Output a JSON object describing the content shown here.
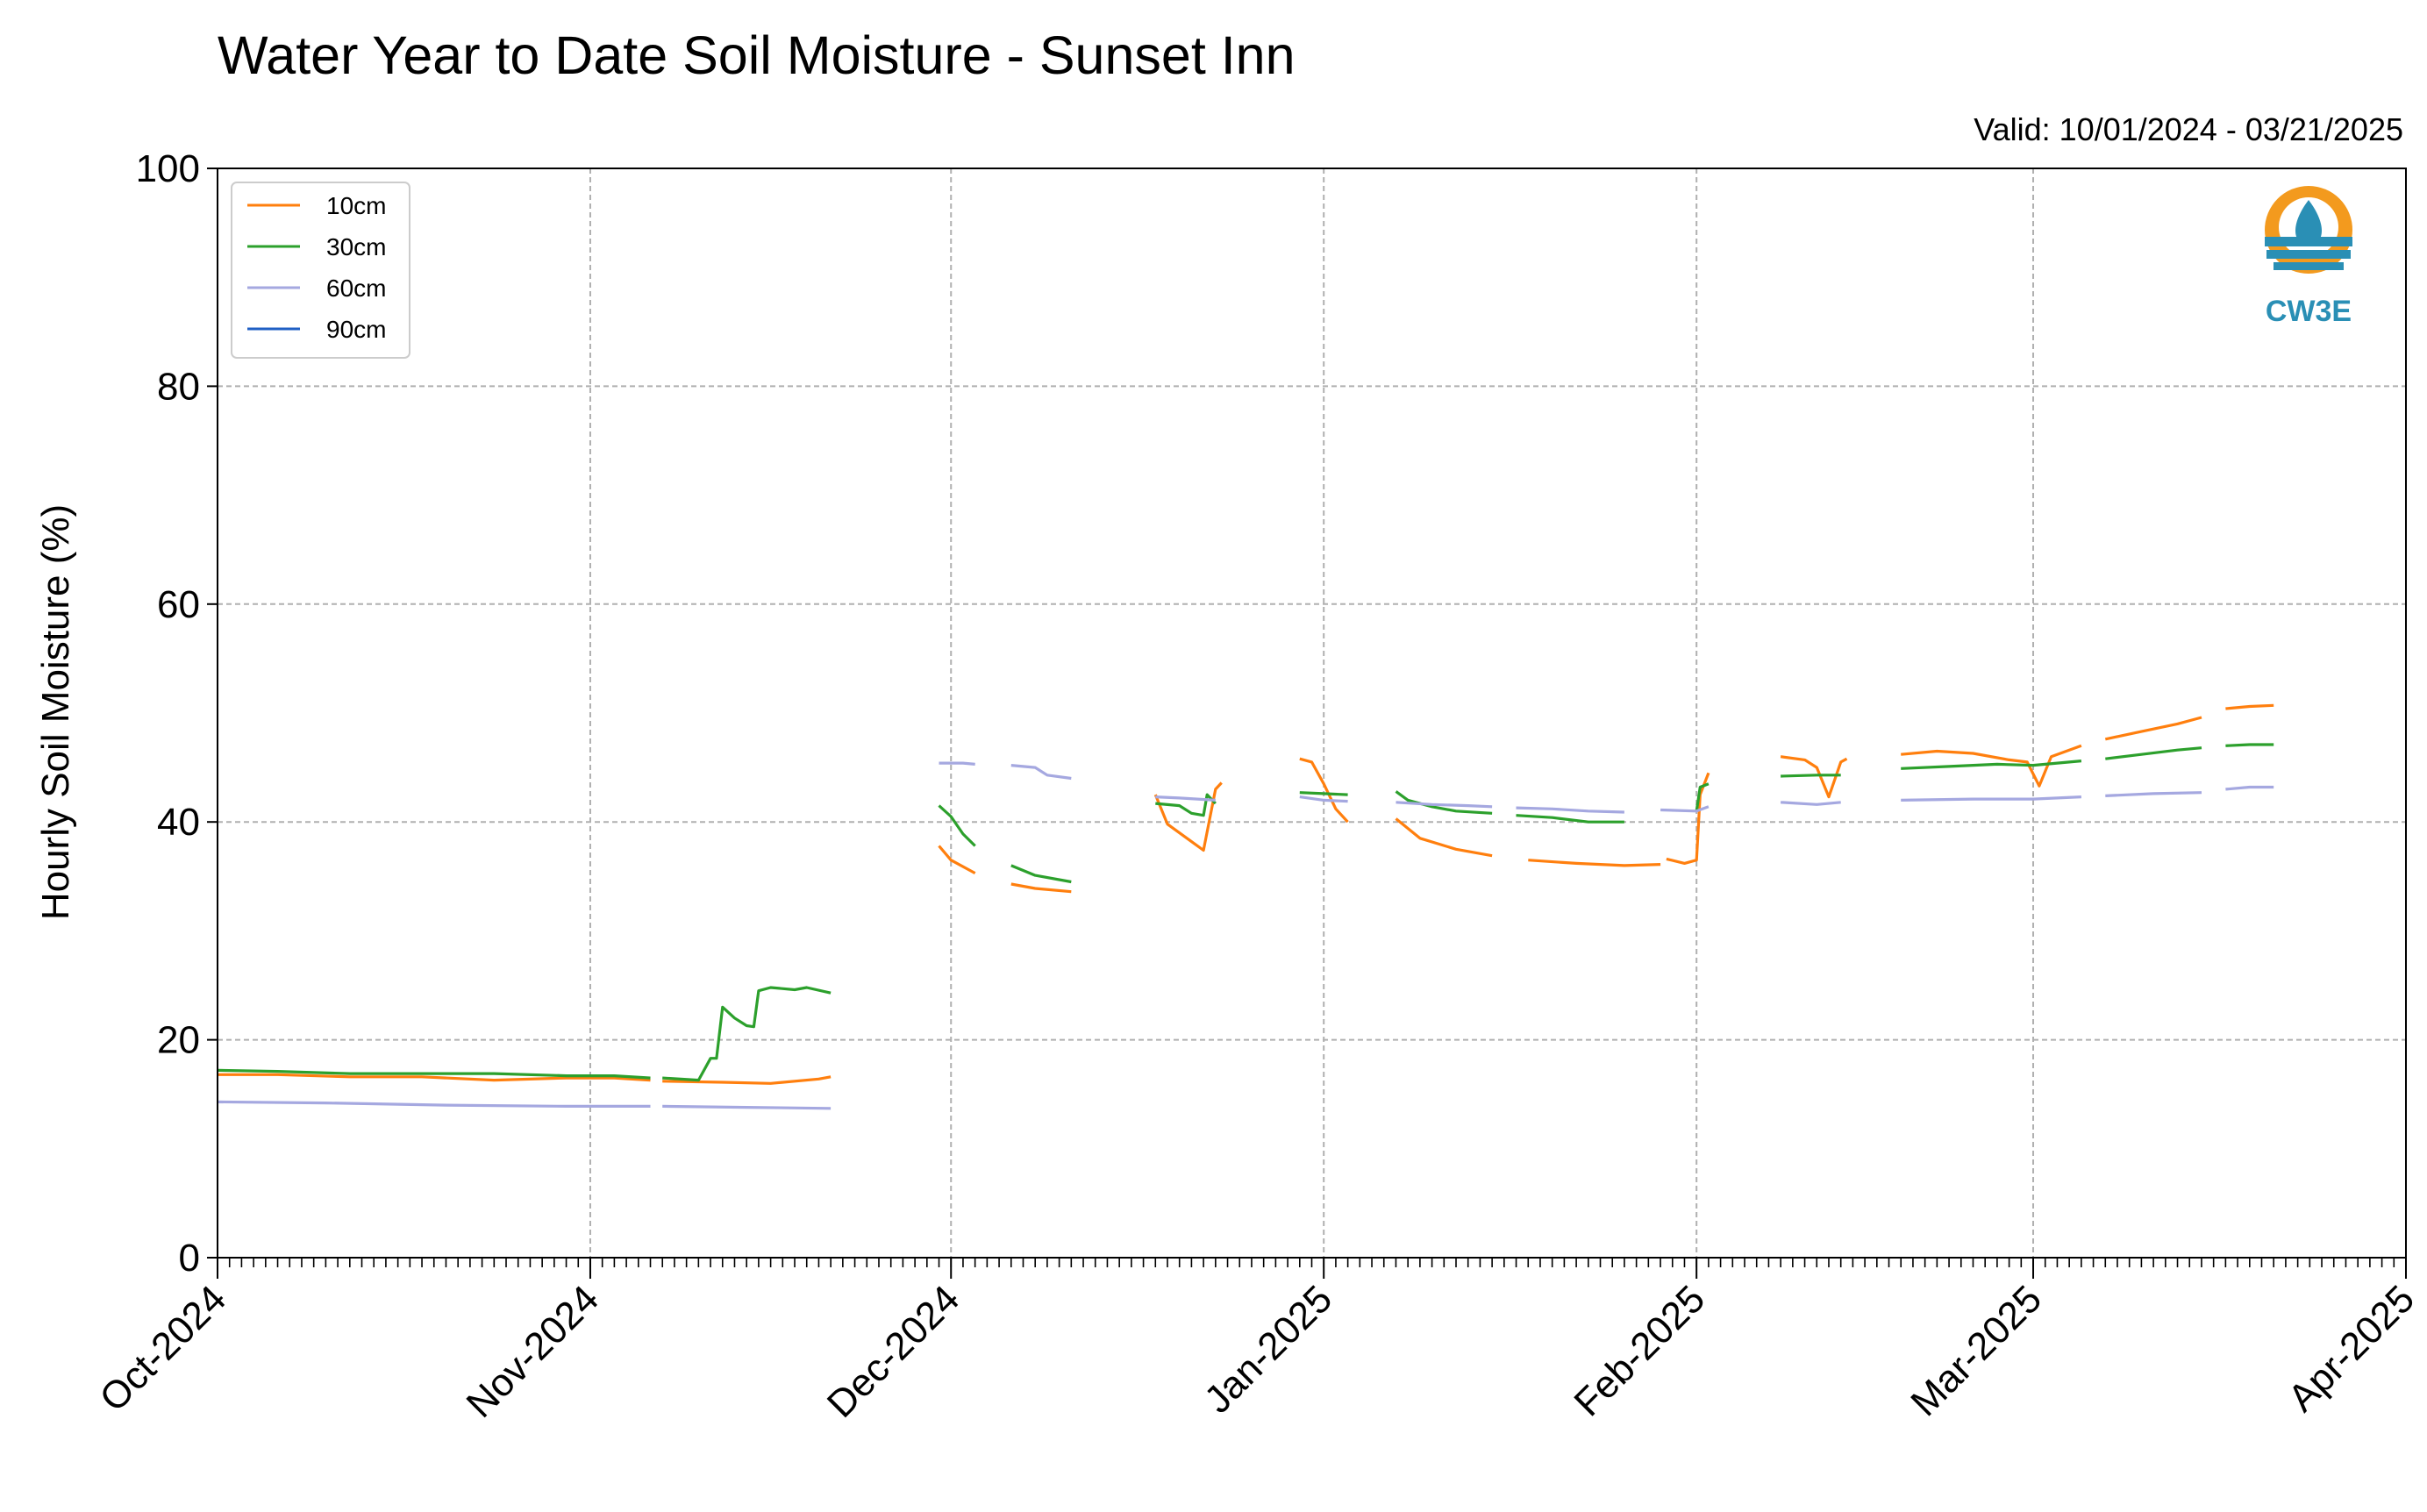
{
  "chart_data": {
    "type": "line",
    "title": "Water Year to Date Soil Moisture - Sunset Inn",
    "subtitle": "Valid: 10/01/2024 - 03/21/2025",
    "xlabel": "",
    "ylabel": "Hourly Soil Moisture (%)",
    "xlim": [
      "2024-10-01",
      "2025-04-01"
    ],
    "ylim": [
      0,
      100
    ],
    "x_ticks": [
      "2024-10-01",
      "2024-11-01",
      "2024-12-01",
      "2025-01-01",
      "2025-02-01",
      "2025-03-01",
      "2025-04-01"
    ],
    "x_tick_labels": [
      "Oct-2024",
      "Nov-2024",
      "Dec-2024",
      "Jan-2025",
      "Feb-2025",
      "Mar-2025",
      "Apr-2025"
    ],
    "y_ticks": [
      0,
      20,
      40,
      60,
      80,
      100
    ],
    "y_tick_labels": [
      "0",
      "20",
      "40",
      "60",
      "80",
      "100"
    ],
    "grid": true,
    "legend_position": "top-left",
    "logo": {
      "text": "CW3E",
      "color": "#2a8fb5",
      "accent": "#f39a1e",
      "position": "top-right"
    },
    "series": [
      {
        "name": "10cm",
        "color": "#ff7f0e",
        "segments": [
          [
            [
              "2024-10-01",
              16.8
            ],
            [
              "2024-10-06",
              16.8
            ],
            [
              "2024-10-12",
              16.6
            ],
            [
              "2024-10-18",
              16.6
            ],
            [
              "2024-10-24",
              16.3
            ],
            [
              "2024-10-30",
              16.5
            ],
            [
              "2024-11-03",
              16.5
            ],
            [
              "2024-11-06",
              16.3
            ]
          ],
          [
            [
              "2024-11-07",
              16.2
            ],
            [
              "2024-11-12",
              16.1
            ],
            [
              "2024-11-16",
              16.0
            ],
            [
              "2024-11-20",
              16.4
            ],
            [
              "2024-11-21",
              16.6
            ]
          ],
          [
            [
              "2024-11-30",
              37.8
            ],
            [
              "2024-12-01",
              36.5
            ],
            [
              "2024-12-03",
              35.3
            ]
          ],
          [
            [
              "2024-12-06",
              34.3
            ],
            [
              "2024-12-08",
              33.9
            ],
            [
              "2024-12-11",
              33.6
            ]
          ],
          [
            [
              "2024-12-18",
              42.5
            ],
            [
              "2024-12-19",
              39.8
            ],
            [
              "2024-12-21",
              38.2
            ],
            [
              "2024-12-22",
              37.4
            ],
            [
              "2024-12-23",
              43.0
            ],
            [
              "2024-12-23.5",
              43.6
            ]
          ],
          [
            [
              "2024-12-30",
              45.8
            ],
            [
              "2024-12-31",
              45.5
            ],
            [
              "2025-01-01",
              43.5
            ],
            [
              "2025-01-02",
              41.2
            ],
            [
              "2025-01-03",
              40.0
            ]
          ],
          [
            [
              "2025-01-07",
              40.3
            ],
            [
              "2025-01-09",
              38.5
            ],
            [
              "2025-01-12",
              37.5
            ],
            [
              "2025-01-15",
              36.9
            ]
          ],
          [
            [
              "2025-01-18",
              36.5
            ],
            [
              "2025-01-22",
              36.2
            ],
            [
              "2025-01-26",
              36.0
            ],
            [
              "2025-01-29",
              36.1
            ]
          ],
          [
            [
              "2025-01-29.5",
              36.6
            ],
            [
              "2025-01-31",
              36.2
            ],
            [
              "2025-02-01",
              36.5
            ],
            [
              "2025-02-01.3",
              42.5
            ],
            [
              "2025-02-02",
              44.5
            ]
          ],
          [
            [
              "2025-02-08",
              46.0
            ],
            [
              "2025-02-10",
              45.7
            ],
            [
              "2025-02-11",
              45.0
            ],
            [
              "2025-02-12",
              42.3
            ],
            [
              "2025-02-13",
              45.5
            ],
            [
              "2025-02-13.5",
              45.8
            ]
          ],
          [
            [
              "2025-02-18",
              46.2
            ],
            [
              "2025-02-21",
              46.5
            ],
            [
              "2025-02-24",
              46.3
            ],
            [
              "2025-02-27",
              45.7
            ],
            [
              "2025-02-28.5",
              45.5
            ],
            [
              "2025-03-01.5",
              43.3
            ],
            [
              "2025-03-02.5",
              46.0
            ],
            [
              "2025-03-05",
              47.0
            ]
          ],
          [
            [
              "2025-03-07",
              47.6
            ],
            [
              "2025-03-10",
              48.3
            ],
            [
              "2025-03-13",
              49.0
            ],
            [
              "2025-03-15",
              49.6
            ]
          ],
          [
            [
              "2025-03-17",
              50.4
            ],
            [
              "2025-03-19",
              50.6
            ],
            [
              "2025-03-21",
              50.7
            ]
          ]
        ]
      },
      {
        "name": "30cm",
        "color": "#2ca02c",
        "segments": [
          [
            [
              "2024-10-01",
              17.2
            ],
            [
              "2024-10-06",
              17.1
            ],
            [
              "2024-10-12",
              16.9
            ],
            [
              "2024-10-18",
              16.9
            ],
            [
              "2024-10-24",
              16.9
            ],
            [
              "2024-10-30",
              16.7
            ],
            [
              "2024-11-03",
              16.7
            ],
            [
              "2024-11-06",
              16.5
            ]
          ],
          [
            [
              "2024-11-07",
              16.5
            ],
            [
              "2024-11-10",
              16.3
            ],
            [
              "2024-11-11",
              18.3
            ],
            [
              "2024-11-11.5",
              18.3
            ],
            [
              "2024-11-12",
              23.0
            ],
            [
              "2024-11-13",
              22.0
            ],
            [
              "2024-11-14",
              21.3
            ],
            [
              "2024-11-14.6",
              21.2
            ],
            [
              "2024-11-15",
              24.5
            ],
            [
              "2024-11-16",
              24.8
            ],
            [
              "2024-11-18",
              24.6
            ],
            [
              "2024-11-19",
              24.8
            ],
            [
              "2024-11-21",
              24.3
            ]
          ],
          [
            [
              "2024-11-30",
              41.5
            ],
            [
              "2024-12-01",
              40.5
            ],
            [
              "2024-12-02",
              38.9
            ],
            [
              "2024-12-03",
              37.8
            ]
          ],
          [
            [
              "2024-12-06",
              36.0
            ],
            [
              "2024-12-08",
              35.1
            ],
            [
              "2024-12-11",
              34.5
            ]
          ],
          [
            [
              "2024-12-18",
              41.7
            ],
            [
              "2024-12-20",
              41.5
            ],
            [
              "2024-12-21",
              40.8
            ],
            [
              "2024-12-22",
              40.6
            ],
            [
              "2024-12-22.3",
              42.5
            ],
            [
              "2024-12-23",
              41.7
            ]
          ],
          [
            [
              "2024-12-30",
              42.7
            ],
            [
              "2025-01-01",
              42.6
            ],
            [
              "2025-01-03",
              42.5
            ]
          ],
          [
            [
              "2025-01-07",
              42.8
            ],
            [
              "2025-01-08",
              42.0
            ],
            [
              "2025-01-10",
              41.4
            ],
            [
              "2025-01-12",
              41.0
            ],
            [
              "2025-01-15",
              40.8
            ]
          ],
          [
            [
              "2025-01-17",
              40.6
            ],
            [
              "2025-01-20",
              40.4
            ],
            [
              "2025-01-23",
              40.0
            ],
            [
              "2025-01-26",
              40.0
            ]
          ],
          [
            [
              "2025-02-01",
              41.0
            ],
            [
              "2025-02-01.3",
              43.2
            ],
            [
              "2025-02-02",
              43.5
            ]
          ],
          [
            [
              "2025-02-08",
              44.2
            ],
            [
              "2025-02-11",
              44.3
            ],
            [
              "2025-02-13",
              44.3
            ]
          ],
          [
            [
              "2025-02-18",
              44.9
            ],
            [
              "2025-02-22",
              45.1
            ],
            [
              "2025-02-26",
              45.3
            ],
            [
              "2025-03-01",
              45.2
            ],
            [
              "2025-03-05",
              45.6
            ]
          ],
          [
            [
              "2025-03-07",
              45.8
            ],
            [
              "2025-03-10",
              46.2
            ],
            [
              "2025-03-13",
              46.6
            ],
            [
              "2025-03-15",
              46.8
            ]
          ],
          [
            [
              "2025-03-17",
              47.0
            ],
            [
              "2025-03-19",
              47.1
            ],
            [
              "2025-03-21",
              47.1
            ]
          ]
        ]
      },
      {
        "name": "60cm",
        "color": "#a5a8e0",
        "segments": [
          [
            [
              "2024-10-01",
              14.3
            ],
            [
              "2024-10-10",
              14.2
            ],
            [
              "2024-10-20",
              14.0
            ],
            [
              "2024-10-30",
              13.9
            ],
            [
              "2024-11-06",
              13.9
            ]
          ],
          [
            [
              "2024-11-07",
              13.9
            ],
            [
              "2024-11-14",
              13.8
            ],
            [
              "2024-11-21",
              13.7
            ]
          ],
          [
            [
              "2024-11-30",
              45.4
            ],
            [
              "2024-12-02",
              45.4
            ],
            [
              "2024-12-03",
              45.3
            ]
          ],
          [
            [
              "2024-12-06",
              45.2
            ],
            [
              "2024-12-08",
              45.0
            ],
            [
              "2024-12-09",
              44.3
            ],
            [
              "2024-12-11",
              44.0
            ]
          ],
          [
            [
              "2024-12-18",
              42.3
            ],
            [
              "2024-12-20",
              42.2
            ],
            [
              "2024-12-23",
              42.0
            ]
          ],
          [
            [
              "2024-12-30",
              42.3
            ],
            [
              "2025-01-01",
              42.0
            ],
            [
              "2025-01-03",
              41.9
            ]
          ],
          [
            [
              "2025-01-07",
              41.8
            ],
            [
              "2025-01-10",
              41.6
            ],
            [
              "2025-01-13",
              41.5
            ],
            [
              "2025-01-15",
              41.4
            ]
          ],
          [
            [
              "2025-01-17",
              41.3
            ],
            [
              "2025-01-20",
              41.2
            ],
            [
              "2025-01-23",
              41.0
            ],
            [
              "2025-01-26",
              40.9
            ]
          ],
          [
            [
              "2025-01-29",
              41.1
            ],
            [
              "2025-02-01",
              41.0
            ],
            [
              "2025-02-02",
              41.4
            ]
          ],
          [
            [
              "2025-02-08",
              41.8
            ],
            [
              "2025-02-11",
              41.6
            ],
            [
              "2025-02-13",
              41.8
            ]
          ],
          [
            [
              "2025-02-18",
              42.0
            ],
            [
              "2025-02-24",
              42.1
            ],
            [
              "2025-03-01",
              42.1
            ],
            [
              "2025-03-05",
              42.3
            ]
          ],
          [
            [
              "2025-03-07",
              42.4
            ],
            [
              "2025-03-11",
              42.6
            ],
            [
              "2025-03-15",
              42.7
            ]
          ],
          [
            [
              "2025-03-17",
              43.0
            ],
            [
              "2025-03-19",
              43.2
            ],
            [
              "2025-03-21",
              43.2
            ]
          ]
        ]
      },
      {
        "name": "90cm",
        "color": "#1f5fc4",
        "segments": []
      }
    ]
  }
}
